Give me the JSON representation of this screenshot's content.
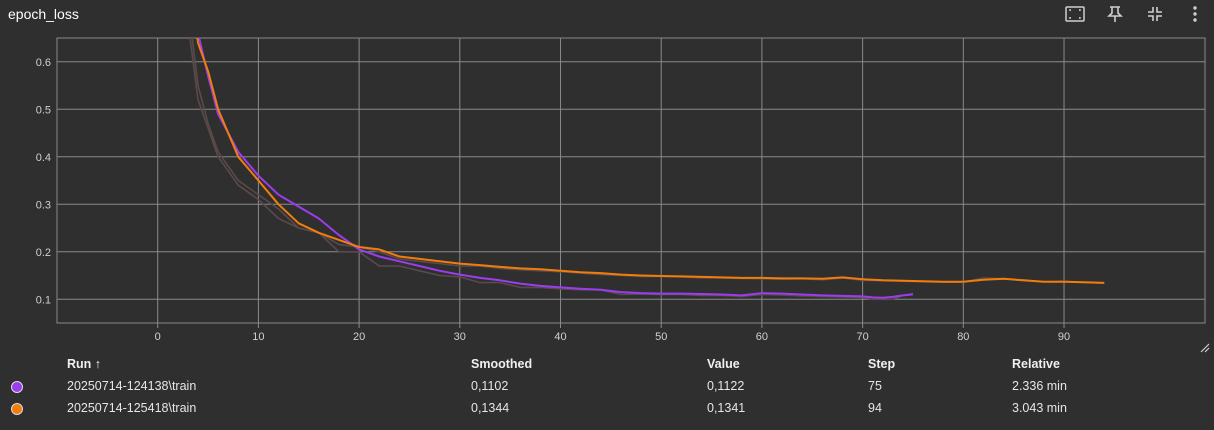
{
  "card": {
    "title": "epoch_loss",
    "toolbar": [
      {
        "name": "fit-domain-icon",
        "icon": "fit-domain"
      },
      {
        "name": "pin-icon",
        "icon": "pin"
      },
      {
        "name": "collapse-icon",
        "icon": "collapse"
      },
      {
        "name": "more-vert-icon",
        "icon": "more-vert"
      }
    ]
  },
  "chart_data": {
    "type": "line",
    "title": "epoch_loss",
    "xlabel": "",
    "ylabel": "",
    "xlim": [
      -10,
      104
    ],
    "ylim": [
      0.05,
      0.65
    ],
    "x_ticks": [
      0,
      10,
      20,
      30,
      40,
      50,
      60,
      70,
      80,
      90
    ],
    "y_ticks": [
      0.1,
      0.2,
      0.3,
      0.4,
      0.5,
      0.6
    ],
    "y_tick_labels": [
      "0.1",
      "0.2",
      "0.3",
      "0.4",
      "0.5",
      "0.6"
    ],
    "grid": true,
    "series": [
      {
        "name": "20250714-124138\\train",
        "color": "#9b3cf0",
        "raw_color": "#5a4a4a",
        "x": [
          0,
          2,
          4,
          5,
          6,
          8,
          10,
          12,
          14,
          16,
          18,
          20,
          22,
          24,
          26,
          28,
          30,
          32,
          34,
          36,
          38,
          40,
          42,
          44,
          46,
          48,
          50,
          52,
          54,
          56,
          58,
          60,
          62,
          64,
          66,
          68,
          70,
          71,
          72,
          73,
          74,
          75
        ],
        "smoothed": [
          2.0,
          0.98,
          0.66,
          0.57,
          0.49,
          0.41,
          0.36,
          0.32,
          0.295,
          0.27,
          0.235,
          0.205,
          0.19,
          0.18,
          0.17,
          0.16,
          0.152,
          0.145,
          0.14,
          0.133,
          0.128,
          0.125,
          0.122,
          0.12,
          0.115,
          0.113,
          0.112,
          0.112,
          0.111,
          0.11,
          0.108,
          0.113,
          0.112,
          0.11,
          0.108,
          0.107,
          0.106,
          0.104,
          0.103,
          0.105,
          0.108,
          0.1102
        ],
        "raw": [
          2.0,
          0.9,
          0.55,
          0.47,
          0.41,
          0.35,
          0.32,
          0.29,
          0.25,
          0.24,
          0.2,
          0.2,
          0.17,
          0.17,
          0.16,
          0.15,
          0.147,
          0.135,
          0.135,
          0.125,
          0.125,
          0.122,
          0.12,
          0.12,
          0.11,
          0.111,
          0.11,
          0.11,
          0.108,
          0.108,
          0.106,
          0.11,
          0.109,
          0.107,
          0.106,
          0.105,
          0.104,
          0.1,
          0.1,
          0.1,
          0.108,
          0.1122
        ]
      },
      {
        "name": "20250714-125418\\train",
        "color": "#f27d0c",
        "raw_color": "#5a4a4a",
        "x": [
          0,
          2,
          4,
          5,
          6,
          8,
          10,
          12,
          14,
          16,
          18,
          20,
          22,
          24,
          26,
          28,
          30,
          32,
          34,
          36,
          38,
          40,
          42,
          44,
          46,
          48,
          50,
          52,
          54,
          56,
          58,
          60,
          62,
          64,
          66,
          68,
          70,
          72,
          74,
          76,
          78,
          80,
          82,
          84,
          86,
          88,
          90,
          92,
          94
        ],
        "smoothed": [
          2.0,
          0.96,
          0.64,
          0.58,
          0.5,
          0.4,
          0.35,
          0.3,
          0.26,
          0.24,
          0.225,
          0.21,
          0.205,
          0.19,
          0.185,
          0.18,
          0.175,
          0.172,
          0.168,
          0.165,
          0.163,
          0.16,
          0.157,
          0.155,
          0.152,
          0.15,
          0.149,
          0.148,
          0.147,
          0.146,
          0.145,
          0.145,
          0.144,
          0.144,
          0.143,
          0.146,
          0.142,
          0.14,
          0.139,
          0.138,
          0.137,
          0.137,
          0.141,
          0.143,
          0.14,
          0.137,
          0.137,
          0.136,
          0.1344
        ],
        "raw": [
          2.0,
          0.85,
          0.52,
          0.46,
          0.4,
          0.34,
          0.31,
          0.27,
          0.25,
          0.24,
          0.215,
          0.21,
          0.2,
          0.185,
          0.18,
          0.175,
          0.17,
          0.17,
          0.165,
          0.162,
          0.16,
          0.158,
          0.155,
          0.152,
          0.15,
          0.148,
          0.148,
          0.147,
          0.145,
          0.145,
          0.144,
          0.143,
          0.142,
          0.143,
          0.141,
          0.145,
          0.14,
          0.139,
          0.138,
          0.137,
          0.136,
          0.136,
          0.145,
          0.143,
          0.139,
          0.137,
          0.138,
          0.135,
          0.1341
        ]
      }
    ]
  },
  "table": {
    "headers": {
      "run": "Run ↑",
      "smoothed": "Smoothed",
      "value": "Value",
      "step": "Step",
      "relative": "Relative"
    },
    "rows": [
      {
        "run": "20250714-124138\\train",
        "smoothed": "0,1102",
        "value": "0,1122",
        "step": "75",
        "relative": "2.336 min",
        "color": "#9b3cf0"
      },
      {
        "run": "20250714-125418\\train",
        "smoothed": "0,1344",
        "value": "0,1341",
        "step": "94",
        "relative": "3.043 min",
        "color": "#f27d0c"
      }
    ]
  }
}
